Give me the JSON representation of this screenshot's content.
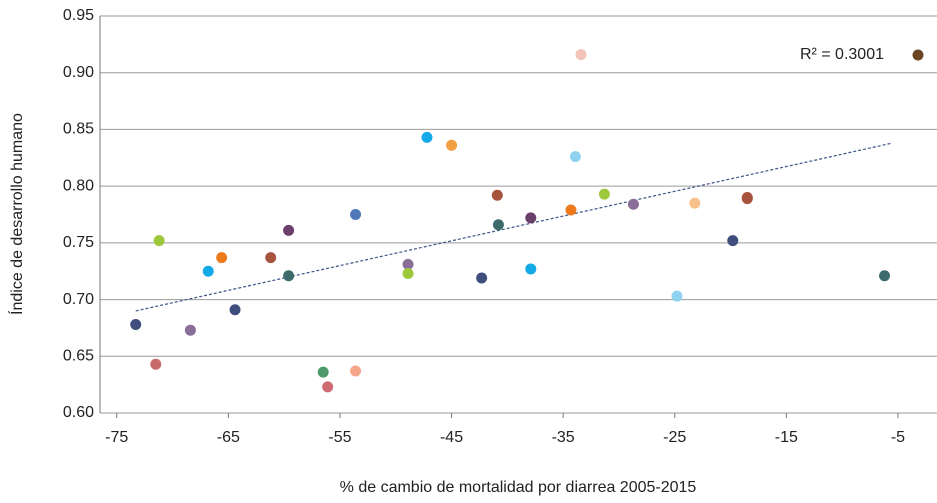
{
  "chart_data": {
    "type": "scatter",
    "x_label": "% de cambio de mortalidad por diarrea 2005-2015",
    "y_label": "Índice de desarrollo humano",
    "annotation": "R² = 0.3001",
    "annotation_color": "#6b4423",
    "xlim": [
      -76.5,
      -1.5
    ],
    "xticks": [
      -75,
      -65,
      -55,
      -45,
      -35,
      -25,
      -15,
      -5
    ],
    "ylim": [
      0.6,
      0.95
    ],
    "yticks": [
      {
        "value": 0.6,
        "label": "0.60"
      },
      0.65,
      {
        "value": 0.7,
        "label": "0.70"
      },
      0.75,
      {
        "value": 0.8,
        "label": "0.80"
      },
      0.85,
      {
        "value": 0.9,
        "label": "0.90"
      },
      0.95
    ],
    "grid": true,
    "trendline": {
      "x": [
        -73.3,
        -5.5
      ],
      "y": [
        0.69,
        0.838
      ],
      "color": "#3b5488"
    },
    "x": [
      -73.3,
      -71.5,
      -71.2,
      -68.4,
      -66.8,
      -65.6,
      -64.4,
      -61.2,
      -59.6,
      -59.6,
      -56.5,
      -56.1,
      -53.6,
      -53.6,
      -48.9,
      -48.9,
      -47.2,
      -45.0,
      -42.3,
      -40.9,
      -40.8,
      -37.9,
      -37.9,
      -34.3,
      -33.9,
      -33.4,
      -31.3,
      -28.7,
      -24.8,
      -23.2,
      -19.8,
      -18.5,
      -18.5,
      -6.2
    ],
    "values": [
      0.678,
      0.643,
      0.752,
      0.673,
      0.725,
      0.737,
      0.691,
      0.737,
      0.761,
      0.721,
      0.636,
      0.623,
      0.637,
      0.775,
      0.731,
      0.723,
      0.843,
      0.836,
      0.719,
      0.792,
      0.766,
      0.772,
      0.727,
      0.779,
      0.826,
      0.916,
      0.793,
      0.784,
      0.703,
      0.785,
      0.752,
      0.79,
      0.789,
      0.721
    ],
    "colors": [
      "#3f4e7c",
      "#c86a6a",
      "#9dc83c",
      "#8a6e9a",
      "#16a9e8",
      "#ee7a1e",
      "#3f4e7c",
      "#a8533d",
      "#6a3f6a",
      "#3d6b6b",
      "#4f9a6c",
      "#cf6a70",
      "#f5a58a",
      "#4f78b8",
      "#8a6e9a",
      "#9dc83c",
      "#16a9e8",
      "#f0a040",
      "#3f4e7c",
      "#a8533d",
      "#3d6b6b",
      "#6a3f6a",
      "#16a9e8",
      "#ee7a1e",
      "#8ed2f0",
      "#f2c4b8",
      "#9dc83c",
      "#8a6e9a",
      "#8ed2f0",
      "#f8c08a",
      "#3f4e7c",
      "#a8533d",
      "#a8533d",
      "#3d6b6b"
    ]
  }
}
